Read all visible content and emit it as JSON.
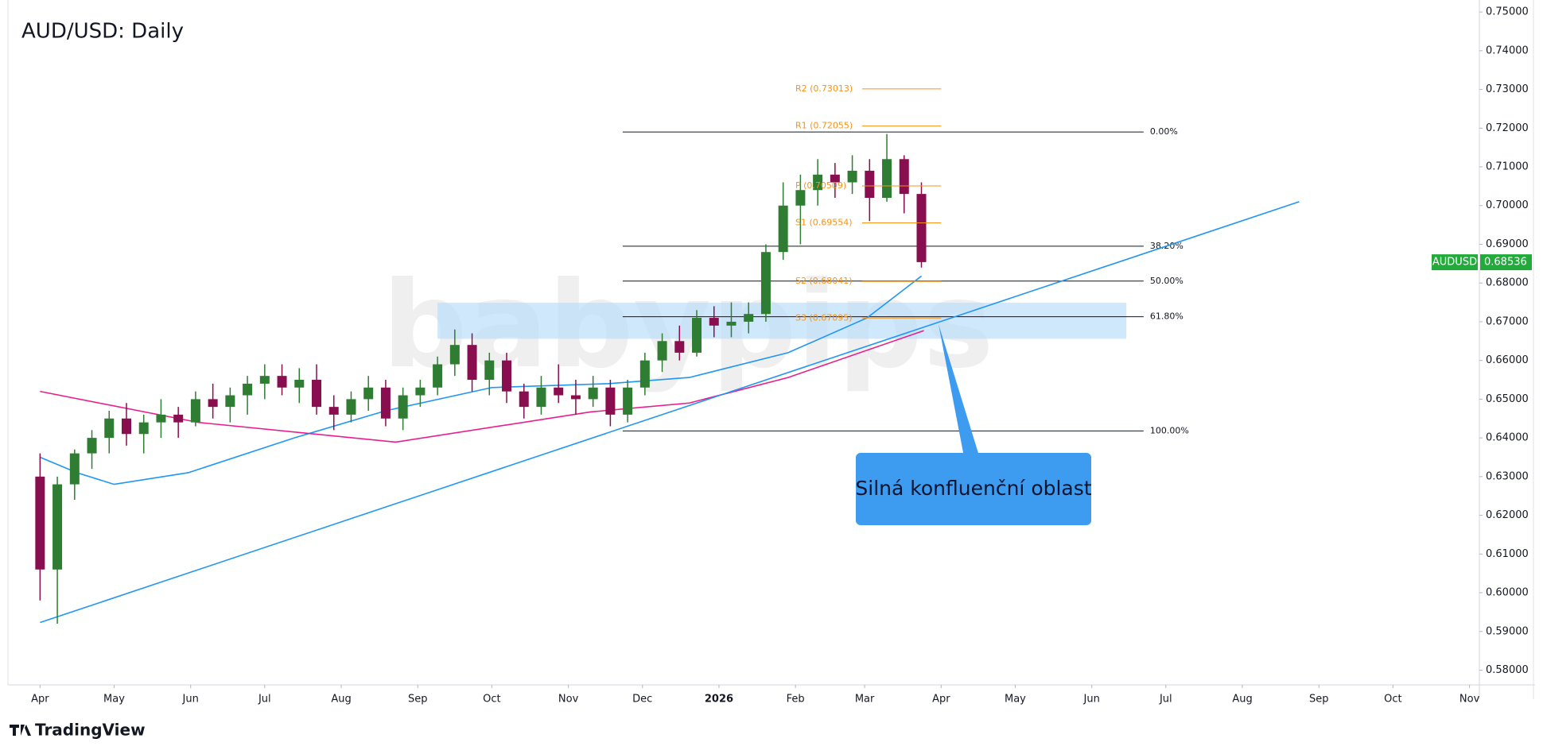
{
  "chart_data": {
    "type": "candlestick",
    "title": "AUD/USD: Daily",
    "footer": "TradingView",
    "watermark": "babypips",
    "xlim": [
      -13,
      583
    ],
    "ylim": [
      0.5762,
      0.7531
    ],
    "xticks": [
      {
        "value": 0,
        "label": "Apr"
      },
      {
        "value": 30,
        "label": "May"
      },
      {
        "value": 61,
        "label": "Jun"
      },
      {
        "value": 91,
        "label": "Jul"
      },
      {
        "value": 122,
        "label": "Aug"
      },
      {
        "value": 153,
        "label": "Sep"
      },
      {
        "value": 183,
        "label": "Oct"
      },
      {
        "value": 214,
        "label": "Nov"
      },
      {
        "value": 244,
        "label": "Dec"
      },
      {
        "value": 275,
        "label": "2026"
      },
      {
        "value": 306,
        "label": "Feb"
      },
      {
        "value": 334,
        "label": "Mar"
      },
      {
        "value": 365,
        "label": "Apr"
      },
      {
        "value": 395,
        "label": "May"
      },
      {
        "value": 426,
        "label": "Jun"
      },
      {
        "value": 456,
        "label": "Jul"
      },
      {
        "value": 487,
        "label": "Aug"
      },
      {
        "value": 518,
        "label": "Sep"
      },
      {
        "value": 548,
        "label": "Oct"
      },
      {
        "value": 579,
        "label": "Nov"
      }
    ],
    "yticks": [
      {
        "value": 0.58,
        "label": "0.58000"
      },
      {
        "value": 0.59,
        "label": "0.59000"
      },
      {
        "value": 0.6,
        "label": "0.60000"
      },
      {
        "value": 0.61,
        "label": "0.61000"
      },
      {
        "value": 0.62,
        "label": "0.62000"
      },
      {
        "value": 0.63,
        "label": "0.63000"
      },
      {
        "value": 0.64,
        "label": "0.64000"
      },
      {
        "value": 0.65,
        "label": "0.65000"
      },
      {
        "value": 0.66,
        "label": "0.66000"
      },
      {
        "value": 0.67,
        "label": "0.67000"
      },
      {
        "value": 0.68,
        "label": "0.68000"
      },
      {
        "value": 0.69,
        "label": "0.69000"
      },
      {
        "value": 0.7,
        "label": "0.70000"
      },
      {
        "value": 0.71,
        "label": "0.71000"
      },
      {
        "value": 0.72,
        "label": "0.72000"
      },
      {
        "value": 0.73,
        "label": "0.73000"
      },
      {
        "value": 0.74,
        "label": "0.74000"
      },
      {
        "value": 0.75,
        "label": "0.75000"
      }
    ],
    "up_color": "#2e7d32",
    "down_color": "#880e4f",
    "candles": {
      "x": [
        0,
        7,
        14,
        21,
        28,
        35,
        42,
        49,
        56,
        63,
        70,
        77,
        84,
        91,
        98,
        105,
        112,
        119,
        126,
        133,
        140,
        147,
        154,
        161,
        168,
        175,
        182,
        189,
        196,
        203,
        210,
        217,
        224,
        231,
        238,
        245,
        252,
        259,
        266,
        273,
        280,
        287,
        294,
        301,
        308,
        315,
        322,
        329,
        336,
        343,
        350,
        357
      ],
      "open": [
        0.63,
        0.606,
        0.628,
        0.636,
        0.64,
        0.645,
        0.641,
        0.644,
        0.646,
        0.644,
        0.65,
        0.648,
        0.651,
        0.654,
        0.656,
        0.653,
        0.655,
        0.648,
        0.646,
        0.65,
        0.653,
        0.645,
        0.651,
        0.653,
        0.659,
        0.664,
        0.655,
        0.66,
        0.652,
        0.648,
        0.653,
        0.651,
        0.65,
        0.653,
        0.646,
        0.653,
        0.66,
        0.665,
        0.662,
        0.671,
        0.669,
        0.67,
        0.672,
        0.688,
        0.7,
        0.704,
        0.708,
        0.706,
        0.709,
        0.702,
        0.712,
        0.703
      ],
      "high": [
        0.636,
        0.63,
        0.637,
        0.642,
        0.647,
        0.649,
        0.646,
        0.65,
        0.648,
        0.652,
        0.654,
        0.653,
        0.656,
        0.659,
        0.659,
        0.658,
        0.659,
        0.651,
        0.652,
        0.656,
        0.655,
        0.653,
        0.655,
        0.661,
        0.668,
        0.667,
        0.662,
        0.662,
        0.654,
        0.656,
        0.659,
        0.655,
        0.656,
        0.655,
        0.655,
        0.662,
        0.667,
        0.669,
        0.673,
        0.674,
        0.675,
        0.675,
        0.69,
        0.706,
        0.708,
        0.712,
        0.711,
        0.713,
        0.712,
        0.7185,
        0.713,
        0.706
      ],
      "low": [
        0.598,
        0.592,
        0.624,
        0.632,
        0.636,
        0.638,
        0.636,
        0.64,
        0.64,
        0.643,
        0.645,
        0.644,
        0.646,
        0.65,
        0.651,
        0.649,
        0.646,
        0.642,
        0.644,
        0.647,
        0.643,
        0.642,
        0.648,
        0.651,
        0.656,
        0.652,
        0.651,
        0.649,
        0.645,
        0.646,
        0.649,
        0.646,
        0.648,
        0.643,
        0.644,
        0.651,
        0.657,
        0.66,
        0.661,
        0.666,
        0.666,
        0.667,
        0.67,
        0.686,
        0.69,
        0.7,
        0.702,
        0.703,
        0.696,
        0.701,
        0.698,
        0.684
      ],
      "close": [
        0.606,
        0.628,
        0.636,
        0.64,
        0.645,
        0.641,
        0.644,
        0.646,
        0.644,
        0.65,
        0.648,
        0.651,
        0.654,
        0.656,
        0.653,
        0.655,
        0.648,
        0.646,
        0.65,
        0.653,
        0.645,
        0.651,
        0.653,
        0.659,
        0.664,
        0.655,
        0.66,
        0.652,
        0.648,
        0.653,
        0.651,
        0.65,
        0.653,
        0.646,
        0.653,
        0.66,
        0.665,
        0.662,
        0.671,
        0.669,
        0.67,
        0.672,
        0.688,
        0.7,
        0.704,
        0.708,
        0.706,
        0.709,
        0.702,
        0.712,
        0.703,
        0.6854
      ]
    },
    "lines": [
      {
        "color": "#2196f3",
        "x": [
          0,
          15,
          30,
          60,
          103,
          140,
          183,
          230,
          263,
          303,
          335,
          357
        ],
        "values": [
          0.635,
          0.631,
          0.628,
          0.631,
          0.64,
          0.647,
          0.653,
          0.654,
          0.6556,
          0.662,
          0.671,
          0.6818
        ]
      },
      {
        "color": "#e91e8c",
        "x": [
          0,
          64,
          144,
          223,
          263,
          303,
          358
        ],
        "values": [
          0.652,
          0.644,
          0.6389,
          0.6467,
          0.649,
          0.6556,
          0.6677
        ]
      },
      {
        "color": "#2196f3",
        "x": [
          0,
          510
        ],
        "values": [
          0.5923,
          0.701
        ]
      }
    ],
    "zone": {
      "color": "#bbdefb",
      "x": [
        161,
        440
      ],
      "values": [
        0.6656,
        0.6749
      ]
    },
    "fib": {
      "x": [
        236,
        447
      ],
      "levels": [
        {
          "label": "0.00%",
          "value": 0.719
        },
        {
          "label": "38.20%",
          "value": 0.6895
        },
        {
          "label": "50.00%",
          "value": 0.6805
        },
        {
          "label": "61.80%",
          "value": 0.6713
        },
        {
          "label": "100.00%",
          "value": 0.6418
        }
      ]
    },
    "pivots": {
      "x": [
        333,
        365
      ],
      "color": "#f7931a",
      "levels": [
        {
          "label": "R2 (0.73013)",
          "value": 0.73013
        },
        {
          "label": "R1 (0.72055)",
          "value": 0.72055
        },
        {
          "label": "P (0.70509)",
          "value": 0.70509
        },
        {
          "label": "S1 (0.69554)",
          "value": 0.69554
        },
        {
          "label": "S2 (0.68041)",
          "value": 0.68041
        },
        {
          "label": "S3 (0.67095)",
          "value": 0.67095
        }
      ]
    },
    "annotation": "Silná konfluenční oblast",
    "current": {
      "symbol": "AUDUSD",
      "value": 0.68536,
      "color": "#22ab3a"
    }
  }
}
